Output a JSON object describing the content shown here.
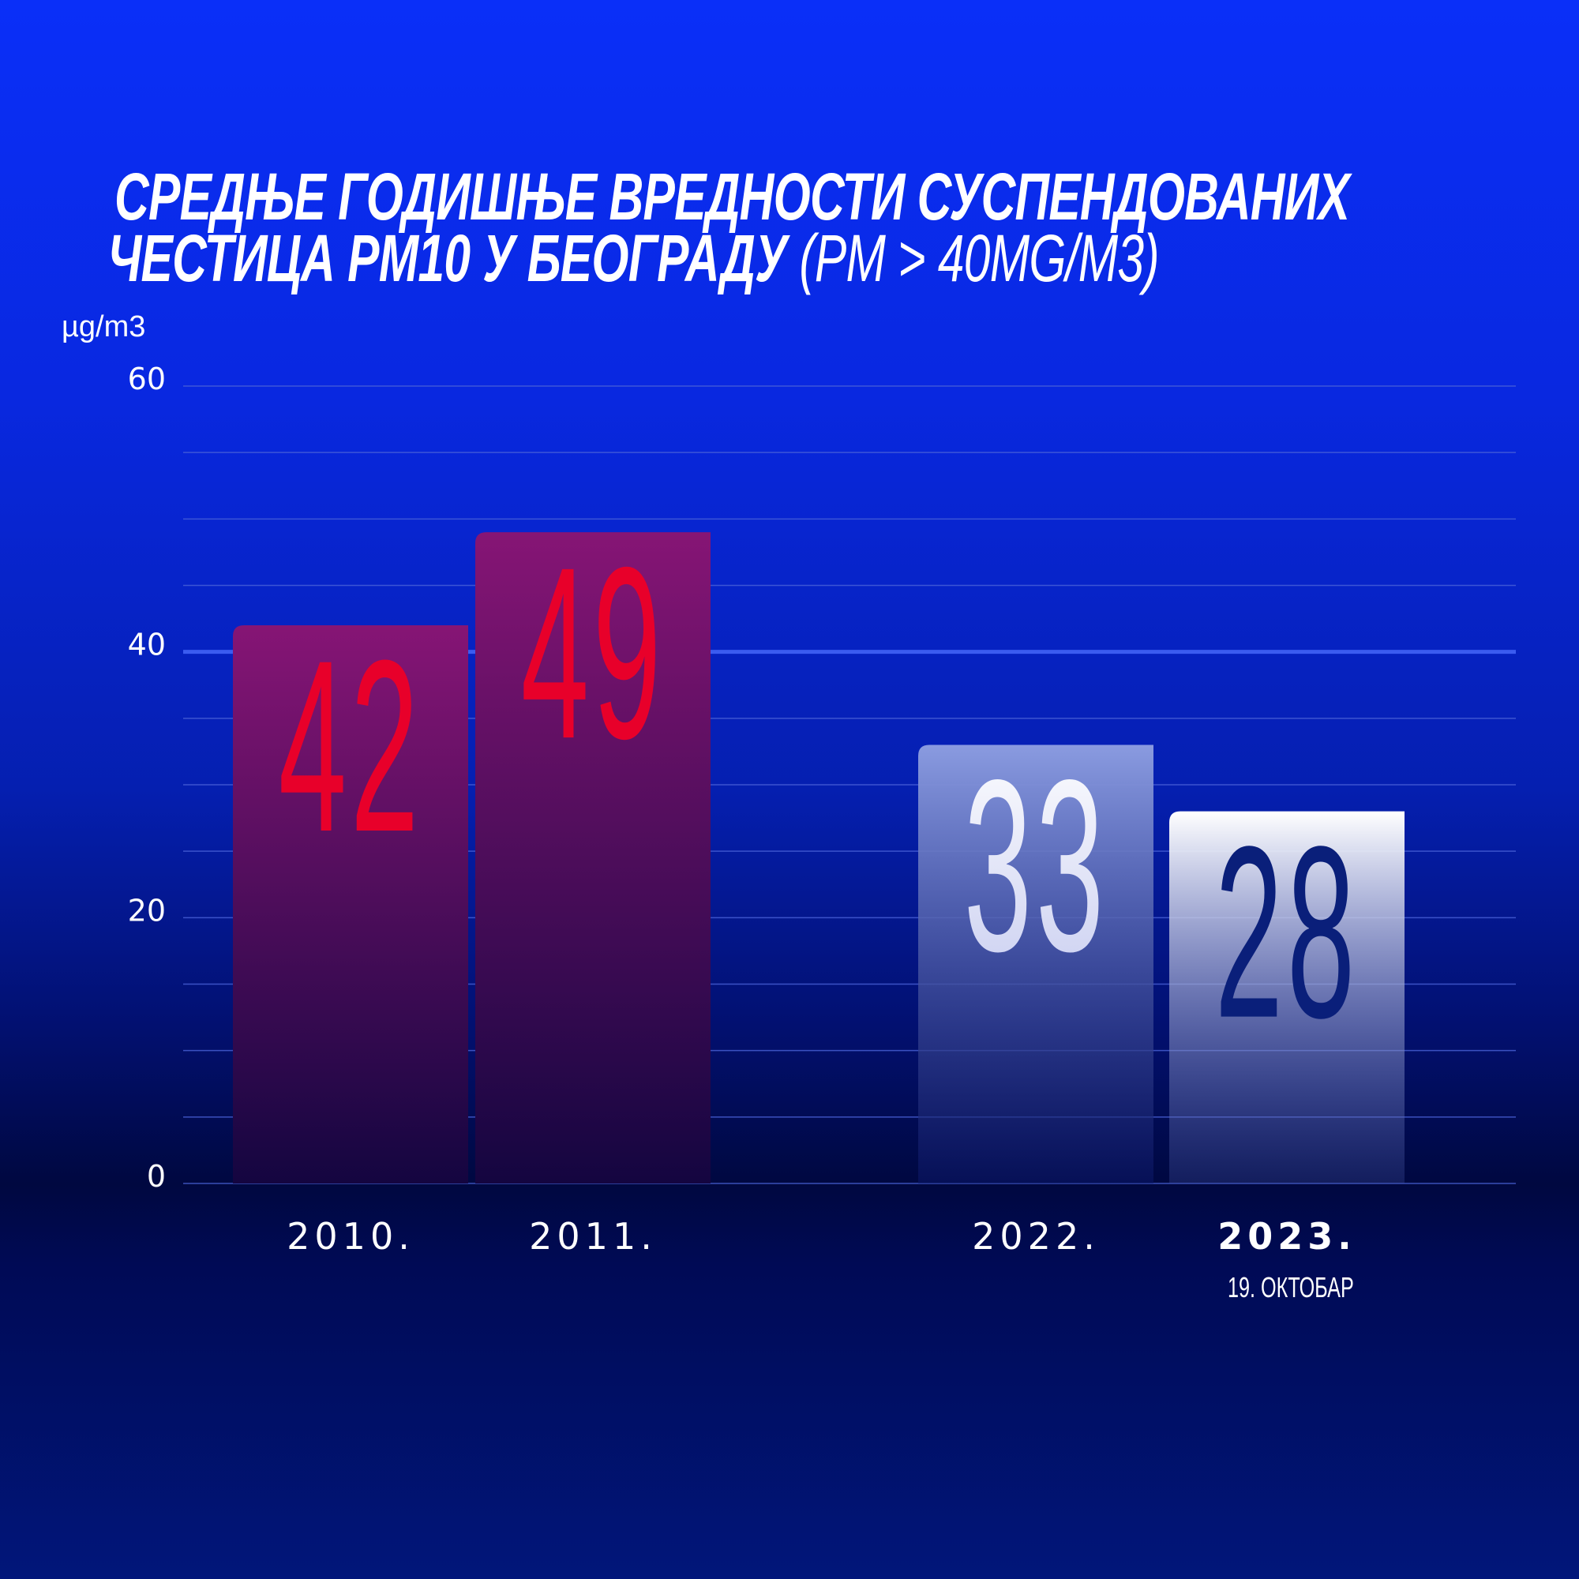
{
  "title": {
    "line1": "СРЕДЊЕ ГОДИШЊЕ ВРЕДНОСТИ СУСПЕНДОВАНИХ",
    "line2": "ЧЕСТИЦА PM10 У БЕОГРАДУ",
    "line2_light": "(PM > 40MG/M3)"
  },
  "chart_data": {
    "type": "bar",
    "title": "СРЕДЊЕ ГОДИШЊЕ ВРЕДНОСТИ СУСПЕНДОВАНИХ ЧЕСТИЦА PM10 У БЕОГРАДУ (PM > 40MG/M3)",
    "ylabel": "µg/m3",
    "ylim": [
      0,
      60
    ],
    "yticks": [
      0,
      20,
      40,
      60
    ],
    "grid": true,
    "grid_step": 5,
    "highlight_line": 40,
    "categories": [
      "2010.",
      "2011.",
      "2022.",
      "2023."
    ],
    "category_sublabels": [
      "",
      "",
      "",
      "19. ОКТОБАР"
    ],
    "values": [
      42,
      49,
      33,
      28
    ],
    "data_labels": [
      "42",
      "49",
      "33",
      "28"
    ],
    "colors": {
      "bar_2010_2011": "#8a1a7a",
      "label_red": "#e8002a",
      "bar_2022": "#8a9be0",
      "bar_2023": "#ffffff",
      "label_2022": "#ffffff",
      "label_2023": "#0a1f7a"
    }
  }
}
